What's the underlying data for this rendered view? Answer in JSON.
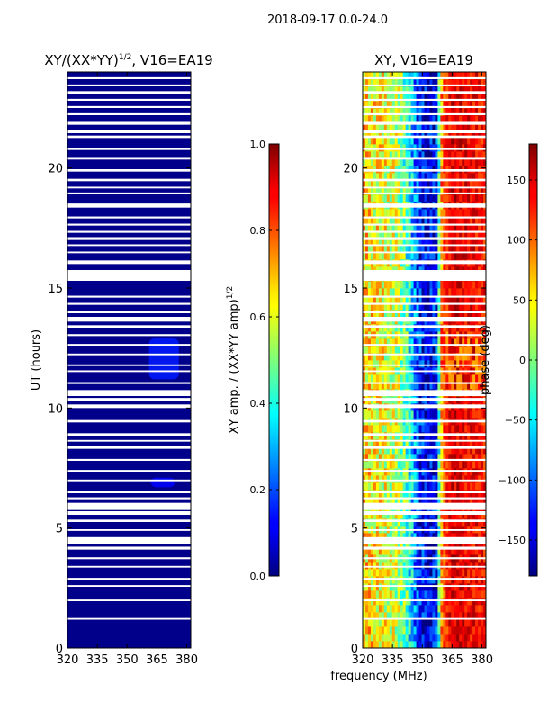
{
  "figure": {
    "suptitle": "2018-09-17 0.0-24.0",
    "shared_xlabel": "frequency (MHz)"
  },
  "chart_data": [
    {
      "type": "heatmap",
      "title_main": "XY/(XX*YY)",
      "title_sup": "1/2",
      "title_tail": ", V16=EA19",
      "ylabel": "UT (hours)",
      "x_ticks": [
        "320",
        "335",
        "350",
        "365",
        "380"
      ],
      "y_ticks": [
        "0",
        "5",
        "10",
        "15",
        "20"
      ],
      "xlim": [
        320,
        382
      ],
      "ylim": [
        0,
        24
      ],
      "colorbar": {
        "label_main": "XY amp. / (XX*YY amp)",
        "label_sup": "1/2",
        "ticks": [
          "0.0",
          "0.2",
          "0.4",
          "0.6",
          "0.8",
          "1.0"
        ],
        "range": [
          0,
          1
        ],
        "colormap": "jet"
      },
      "description_values": {
        "background_level": 0.02,
        "faint_patches": [
          {
            "freq_range": [
              361,
              376
            ],
            "ut_range": [
              11.2,
              12.9
            ],
            "level": 0.1
          },
          {
            "freq_range": [
              362,
              374
            ],
            "ut_range": [
              6.7,
              7.1
            ],
            "level": 0.08
          }
        ]
      }
    },
    {
      "type": "heatmap",
      "title_main": "XY, V16=EA19",
      "ylabel": "",
      "x_ticks": [
        "320",
        "335",
        "350",
        "365",
        "380"
      ],
      "y_ticks": [
        "0",
        "5",
        "10",
        "15",
        "20"
      ],
      "xlim": [
        320,
        382
      ],
      "ylim": [
        0,
        24
      ],
      "colorbar": {
        "label_main": "phase (deg)",
        "ticks": [
          "150",
          "100",
          "50",
          "0",
          "−50",
          "−100",
          "−150"
        ],
        "range": [
          -180,
          180
        ],
        "colormap": "jet"
      },
      "description_values": {
        "phase_vs_frequency_deg": [
          [
            320,
            60
          ],
          [
            330,
            40
          ],
          [
            338,
            20
          ],
          [
            343,
            -30
          ],
          [
            348,
            -120
          ],
          [
            353,
            -150
          ],
          [
            357,
            -130
          ],
          [
            360,
            100
          ],
          [
            365,
            150
          ],
          [
            372,
            140
          ],
          [
            382,
            130
          ]
        ]
      }
    }
  ],
  "flag_gaps_ut_hours": [
    [
      1.18,
      1.25
    ],
    [
      1.95,
      2.02
    ],
    [
      2.55,
      2.62
    ],
    [
      2.85,
      2.92
    ],
    [
      3.35,
      3.42
    ],
    [
      3.7,
      3.78
    ],
    [
      4.1,
      4.22
    ],
    [
      4.35,
      4.62
    ],
    [
      4.88,
      4.95
    ],
    [
      5.25,
      5.35
    ],
    [
      5.55,
      5.7
    ],
    [
      5.75,
      6.05
    ],
    [
      6.2,
      6.28
    ],
    [
      6.45,
      6.53
    ],
    [
      6.95,
      7.02
    ],
    [
      7.35,
      7.42
    ],
    [
      7.8,
      7.88
    ],
    [
      8.3,
      8.4
    ],
    [
      8.6,
      8.67
    ],
    [
      8.85,
      8.95
    ],
    [
      9.4,
      9.5
    ],
    [
      10.0,
      10.15
    ],
    [
      10.3,
      10.42
    ],
    [
      10.5,
      10.75
    ],
    [
      11.0,
      11.08
    ],
    [
      11.5,
      11.57
    ],
    [
      11.75,
      11.82
    ],
    [
      12.2,
      12.27
    ],
    [
      12.6,
      12.67
    ],
    [
      13.0,
      13.08
    ],
    [
      13.35,
      13.45
    ],
    [
      13.6,
      13.8
    ],
    [
      13.95,
      14.05
    ],
    [
      14.3,
      14.38
    ],
    [
      14.6,
      14.68
    ],
    [
      15.3,
      15.75
    ],
    [
      16.0,
      16.15
    ],
    [
      16.45,
      16.52
    ],
    [
      16.75,
      16.82
    ],
    [
      17.0,
      17.12
    ],
    [
      17.3,
      17.38
    ],
    [
      17.6,
      17.68
    ],
    [
      17.9,
      17.98
    ],
    [
      18.35,
      18.52
    ],
    [
      18.9,
      18.98
    ],
    [
      19.15,
      19.22
    ],
    [
      19.45,
      19.55
    ],
    [
      19.85,
      19.95
    ],
    [
      20.35,
      20.42
    ],
    [
      20.75,
      20.82
    ],
    [
      21.25,
      21.35
    ],
    [
      21.45,
      21.6
    ],
    [
      21.8,
      21.92
    ],
    [
      22.2,
      22.28
    ],
    [
      22.5,
      22.58
    ],
    [
      22.8,
      22.88
    ],
    [
      23.1,
      23.2
    ],
    [
      23.4,
      23.48
    ],
    [
      23.7,
      23.78
    ]
  ]
}
